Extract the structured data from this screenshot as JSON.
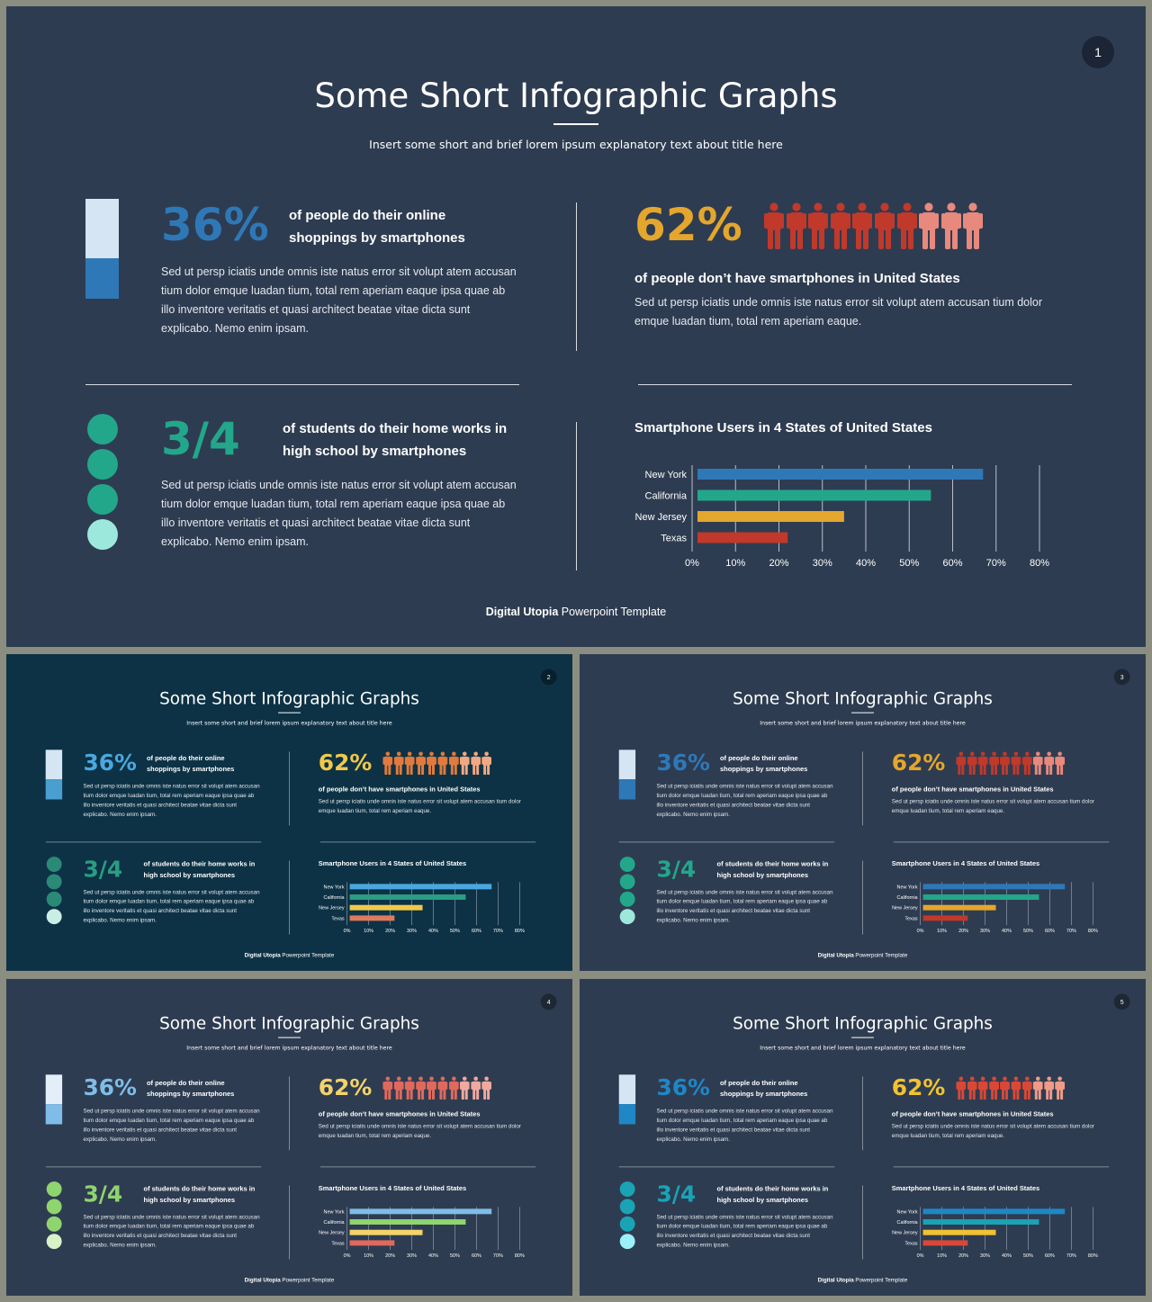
{
  "common": {
    "title": "Some Short Infographic Graphs",
    "subtitle": "Insert some short and brief lorem ipsum explanatory text about title here",
    "stat1": {
      "value": "36%",
      "lead_line1": "of people do their online",
      "lead_line2": "shoppings by smartphones",
      "body": "Sed ut persp iciatis unde omnis iste natus error sit volupt atem accusan tium dolor emque luadan tium, total rem aperiam eaque ipsa quae ab illo inventore veritatis et quasi architect beatae vitae dicta sunt explicabo. Nemo enim ipsam."
    },
    "stat2": {
      "value": "62%",
      "lead": "of people don’t have smartphones in United States",
      "body": "Sed ut persp iciatis unde omnis iste natus error sit volupt atem accusan tium dolor emque luadan tium, total rem aperiam eaque.",
      "people_icon": "person-icon"
    },
    "stat3": {
      "value": "3/4",
      "lead_line1": "of students do their home works in",
      "lead_line2": "high school by smartphones",
      "body": "Sed ut persp iciatis unde omnis iste natus error sit volupt atem accusan tium dolor emque luadan tium, total rem aperiam eaque ipsa quae ab illo inventore veritatis et quasi architect beatae vitae dicta sunt explicabo. Nemo enim ipsam."
    },
    "chart_title": "Smartphone Users in 4 States of United States",
    "footer_brand": "Digital Utopia",
    "footer_rest": " Powerpoint Template"
  },
  "chart_data": {
    "type": "bar",
    "orientation": "horizontal",
    "title": "Smartphone Users in 4 States of United States",
    "categories": [
      "New York",
      "California",
      "New Jersey",
      "Texas"
    ],
    "values": [
      67,
      55,
      35,
      22
    ],
    "xlim": [
      0,
      80
    ],
    "xticks": [
      "0%",
      "10%",
      "20%",
      "30%",
      "40%",
      "50%",
      "60%",
      "70%",
      "80%"
    ],
    "grid": true
  },
  "slides": [
    {
      "page": "1",
      "colors": {
        "bg": "#2e3c51",
        "bar_top": "#d6e5f3",
        "bar_bot": "#2f78b7",
        "c36": "#2f78b7",
        "c62": "#e4a62d",
        "c34": "#22a78b",
        "people_dark": "#c0392b",
        "people_light": "#e8897d",
        "dots": [
          "#22a78b",
          "#22a78b",
          "#22a78b",
          "#9de8dc"
        ],
        "bars": [
          "#2f78b7",
          "#22a78b",
          "#e4a62d",
          "#c0392b"
        ]
      }
    },
    {
      "page": "2",
      "colors": {
        "bg": "#0d3245",
        "bar_top": "#d6e5f3",
        "bar_bot": "#4a9fd0",
        "c36": "#4aa8e0",
        "c62": "#f1c84b",
        "c34": "#2a9d84",
        "people_dark": "#e07a3d",
        "people_light": "#f0a982",
        "dots": [
          "#2a8a77",
          "#2a8a77",
          "#2a8a77",
          "#c9eee6"
        ],
        "bars": [
          "#4aa8e0",
          "#2a9d84",
          "#f1c84b",
          "#e07a5d"
        ]
      }
    },
    {
      "page": "3",
      "colors": {
        "bg": "#2e3c51",
        "bar_top": "#d6e5f3",
        "bar_bot": "#2f78b7",
        "c36": "#2f78b7",
        "c62": "#e4a62d",
        "c34": "#22a78b",
        "people_dark": "#c0392b",
        "people_light": "#e8897d",
        "dots": [
          "#22a78b",
          "#22a78b",
          "#22a78b",
          "#9de8dc"
        ],
        "bars": [
          "#2f78b7",
          "#22a78b",
          "#e4a62d",
          "#c0392b"
        ]
      }
    },
    {
      "page": "4",
      "colors": {
        "bg": "#2e3c51",
        "bar_top": "#e3eef8",
        "bar_bot": "#7fbde8",
        "c36": "#7fbde8",
        "c62": "#f3d36a",
        "c34": "#8fd46f",
        "people_dark": "#e0695d",
        "people_light": "#f0a99f",
        "dots": [
          "#8fd46f",
          "#8fd46f",
          "#8fd46f",
          "#d9f2c8"
        ],
        "bars": [
          "#7fbde8",
          "#8fd46f",
          "#f3d36a",
          "#e0695d"
        ]
      }
    },
    {
      "page": "5",
      "colors": {
        "bg": "#2e3c51",
        "bar_top": "#d6e5f3",
        "bar_bot": "#1f87c6",
        "c36": "#1f87c6",
        "c62": "#f1c232",
        "c34": "#1aa3b5",
        "people_dark": "#d94836",
        "people_light": "#f09b88",
        "dots": [
          "#1aa3b5",
          "#1aa3b5",
          "#1aa3b5",
          "#9cf0f7"
        ],
        "bars": [
          "#1f87c6",
          "#1aa3b5",
          "#f1c232",
          "#d94836"
        ]
      }
    }
  ]
}
